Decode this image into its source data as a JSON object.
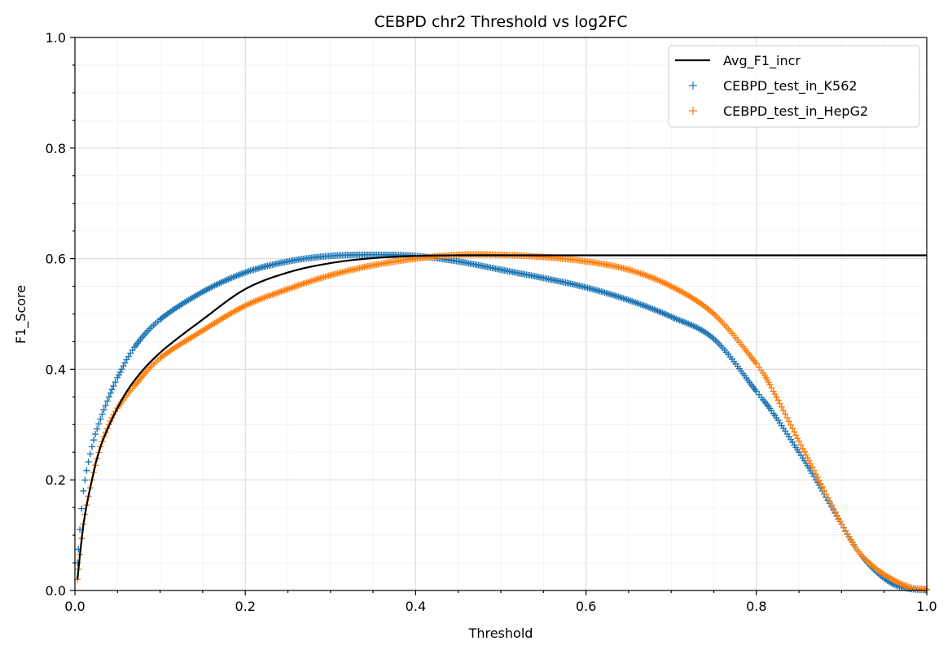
{
  "chart_data": {
    "type": "line",
    "title": "CEBPD chr2 Threshold vs log2FC",
    "xlabel": "Threshold",
    "ylabel": "F1_Score",
    "xlim": [
      0,
      1
    ],
    "ylim": [
      0,
      1
    ],
    "x_ticks": [
      "0.0",
      "0.2",
      "0.4",
      "0.6",
      "0.8",
      "1.0"
    ],
    "y_ticks": [
      "0.0",
      "0.2",
      "0.4",
      "0.6",
      "0.8",
      "1.0"
    ],
    "grid": "major and minor",
    "legend_position": "top-right",
    "series": [
      {
        "name": "Avg_F1_incr",
        "style": "line",
        "color": "#000000",
        "points": [
          [
            0.003,
            0.02
          ],
          [
            0.01,
            0.12
          ],
          [
            0.02,
            0.2
          ],
          [
            0.03,
            0.26
          ],
          [
            0.05,
            0.33
          ],
          [
            0.07,
            0.38
          ],
          [
            0.1,
            0.43
          ],
          [
            0.15,
            0.49
          ],
          [
            0.2,
            0.545
          ],
          [
            0.25,
            0.575
          ],
          [
            0.3,
            0.592
          ],
          [
            0.35,
            0.601
          ],
          [
            0.4,
            0.605
          ],
          [
            0.45,
            0.606
          ],
          [
            0.5,
            0.606
          ],
          [
            0.6,
            0.606
          ],
          [
            0.8,
            0.606
          ],
          [
            1.0,
            0.606
          ]
        ]
      },
      {
        "name": "CEBPD_test_in_K562",
        "style": "scatter",
        "marker": "+",
        "color": "#1f77b4",
        "points": [
          [
            0.003,
            0.05
          ],
          [
            0.01,
            0.18
          ],
          [
            0.02,
            0.26
          ],
          [
            0.03,
            0.31
          ],
          [
            0.04,
            0.35
          ],
          [
            0.05,
            0.385
          ],
          [
            0.07,
            0.44
          ],
          [
            0.1,
            0.49
          ],
          [
            0.15,
            0.54
          ],
          [
            0.2,
            0.575
          ],
          [
            0.25,
            0.595
          ],
          [
            0.3,
            0.605
          ],
          [
            0.35,
            0.607
          ],
          [
            0.4,
            0.605
          ],
          [
            0.45,
            0.595
          ],
          [
            0.5,
            0.58
          ],
          [
            0.55,
            0.565
          ],
          [
            0.6,
            0.548
          ],
          [
            0.65,
            0.525
          ],
          [
            0.7,
            0.495
          ],
          [
            0.75,
            0.455
          ],
          [
            0.8,
            0.36
          ],
          [
            0.82,
            0.32
          ],
          [
            0.85,
            0.25
          ],
          [
            0.87,
            0.2
          ],
          [
            0.9,
            0.12
          ],
          [
            0.92,
            0.07
          ],
          [
            0.94,
            0.035
          ],
          [
            0.96,
            0.012
          ],
          [
            0.98,
            0.003
          ],
          [
            1.0,
            0.001
          ]
        ]
      },
      {
        "name": "CEBPD_test_in_HepG2",
        "style": "scatter",
        "marker": "+",
        "color": "#ff7f0e",
        "points": [
          [
            0.003,
            0.02
          ],
          [
            0.01,
            0.12
          ],
          [
            0.02,
            0.2
          ],
          [
            0.03,
            0.26
          ],
          [
            0.04,
            0.3
          ],
          [
            0.05,
            0.33
          ],
          [
            0.07,
            0.37
          ],
          [
            0.1,
            0.42
          ],
          [
            0.15,
            0.47
          ],
          [
            0.2,
            0.515
          ],
          [
            0.25,
            0.545
          ],
          [
            0.3,
            0.57
          ],
          [
            0.35,
            0.588
          ],
          [
            0.4,
            0.6
          ],
          [
            0.45,
            0.607
          ],
          [
            0.5,
            0.607
          ],
          [
            0.55,
            0.603
          ],
          [
            0.6,
            0.595
          ],
          [
            0.65,
            0.58
          ],
          [
            0.7,
            0.55
          ],
          [
            0.75,
            0.5
          ],
          [
            0.8,
            0.41
          ],
          [
            0.82,
            0.36
          ],
          [
            0.85,
            0.27
          ],
          [
            0.87,
            0.21
          ],
          [
            0.9,
            0.12
          ],
          [
            0.92,
            0.07
          ],
          [
            0.94,
            0.04
          ],
          [
            0.96,
            0.02
          ],
          [
            0.98,
            0.006
          ],
          [
            1.0,
            0.002
          ]
        ]
      }
    ]
  }
}
